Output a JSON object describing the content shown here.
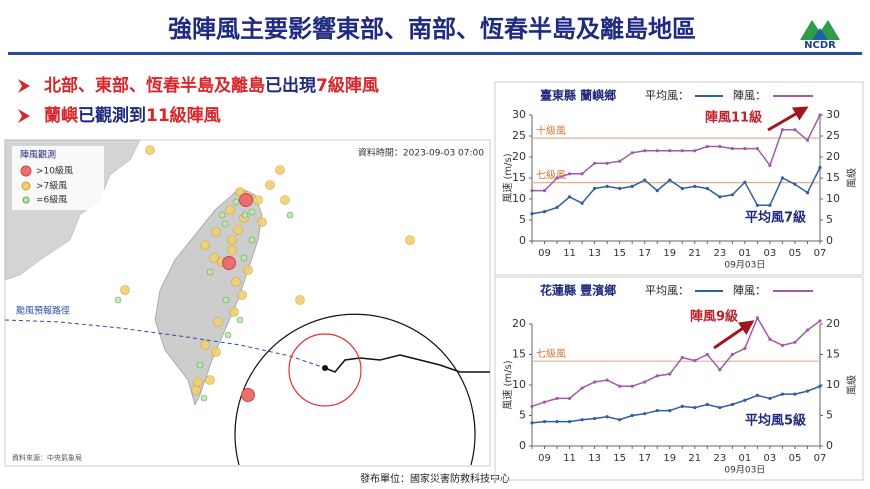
{
  "header": {
    "title": "強陣風主要影響東部、南部、恆春半島及離島地區",
    "logo_text": "NCDR"
  },
  "bullets": [
    [
      {
        "text": "北部、東部、恆春半島及離島",
        "color": "#d8262b"
      },
      {
        "text": "已出現",
        "color": "#1f2a80"
      },
      {
        "text": "7級陣風",
        "color": "#d8262b"
      }
    ],
    [
      {
        "text": "蘭嶼",
        "color": "#d8262b"
      },
      {
        "text": "已觀測到",
        "color": "#1f2a80"
      },
      {
        "text": "11級陣風",
        "color": "#d8262b"
      }
    ]
  ],
  "map": {
    "legend_title": "陣風觀測",
    "legend": [
      ">10級風",
      ">7級風",
      "=6級風"
    ],
    "data_time": "資料時間：2023-09-03 07:00",
    "track_label": "颱風預報路徑",
    "source": "資料來源：中央氣象局"
  },
  "footer": "發布單位：國家災害防救科技中心",
  "chart_data": [
    {
      "type": "line",
      "title": "臺東縣 蘭嶼鄉",
      "y_label": "風速 (m/s)",
      "y2_label": "風級",
      "date_label": "09月03日",
      "categories": [
        null,
        "09",
        null,
        "11",
        null,
        "13",
        null,
        "15",
        null,
        "17",
        null,
        "19",
        null,
        "21",
        null,
        "23",
        null,
        "01",
        null,
        "03",
        null,
        "05",
        null,
        "07"
      ],
      "series": [
        {
          "name": "平均風：",
          "color": "#2f5f9e",
          "values": [
            6.5,
            7,
            8,
            10.5,
            9,
            12.5,
            13,
            12.5,
            13,
            14.5,
            12,
            14.5,
            12.5,
            13,
            12.5,
            10.5,
            11,
            14,
            8.5,
            8.5,
            15,
            13.5,
            11.5,
            17.5
          ]
        },
        {
          "name": "陣風：",
          "color": "#a05aa8",
          "values": [
            12,
            12,
            15,
            16,
            16,
            18.5,
            18.5,
            19,
            21,
            21.5,
            21.5,
            21.5,
            21.5,
            21.5,
            22.5,
            22.5,
            22,
            22,
            22,
            18,
            26.5,
            26.5,
            24,
            30
          ]
        }
      ],
      "ylim": [
        0,
        30
      ],
      "yticks": [
        0,
        5,
        10,
        15,
        20,
        25,
        30
      ],
      "y2lim": [
        0,
        30
      ],
      "y2ticks": [
        0,
        5,
        10,
        15,
        20,
        25,
        30
      ],
      "reference_lines": [
        {
          "value": 24.5,
          "label": "十級風"
        },
        {
          "value": 13.9,
          "label": "七級風"
        }
      ],
      "annotations": [
        {
          "text": "陣風11級",
          "color": "#c0212a"
        },
        {
          "text": "平均風7級",
          "color": "#1f2a80"
        }
      ]
    },
    {
      "type": "line",
      "title": "花蓮縣 豐濱鄉",
      "y_label": "風速 (m/s)",
      "y2_label": "風級",
      "date_label": "09月03日",
      "categories": [
        null,
        "09",
        null,
        "11",
        null,
        "13",
        null,
        "15",
        null,
        "17",
        null,
        "19",
        null,
        "21",
        null,
        "23",
        null,
        "01",
        null,
        "03",
        null,
        "05",
        null,
        "07"
      ],
      "series": [
        {
          "name": "平均風：",
          "color": "#2f5f9e",
          "values": [
            3.8,
            4,
            4,
            4,
            4.3,
            4.5,
            4.8,
            4.3,
            5,
            5.3,
            5.8,
            5.8,
            6.5,
            6.3,
            6.8,
            6.3,
            6.8,
            7.5,
            8.3,
            7.8,
            8.5,
            8.5,
            9,
            9.8
          ]
        },
        {
          "name": "陣風：",
          "color": "#a05aa8",
          "values": [
            6.5,
            7.2,
            7.8,
            7.8,
            9.5,
            10.5,
            10.8,
            9.8,
            9.8,
            10.5,
            11.5,
            11.8,
            14.5,
            14,
            15,
            12.5,
            15,
            16,
            21,
            17.5,
            16.5,
            17,
            19,
            20.5
          ]
        }
      ],
      "ylim": [
        0,
        20
      ],
      "yticks": [
        0,
        5,
        10,
        15,
        20
      ],
      "y2lim": [
        0,
        20
      ],
      "y2ticks": [
        0,
        5,
        10,
        15,
        20
      ],
      "reference_lines": [
        {
          "value": 13.9,
          "label": "七級風"
        }
      ],
      "annotations": [
        {
          "text": "陣風9級",
          "color": "#c0212a"
        },
        {
          "text": "平均風5級",
          "color": "#1f2a80"
        }
      ]
    }
  ]
}
